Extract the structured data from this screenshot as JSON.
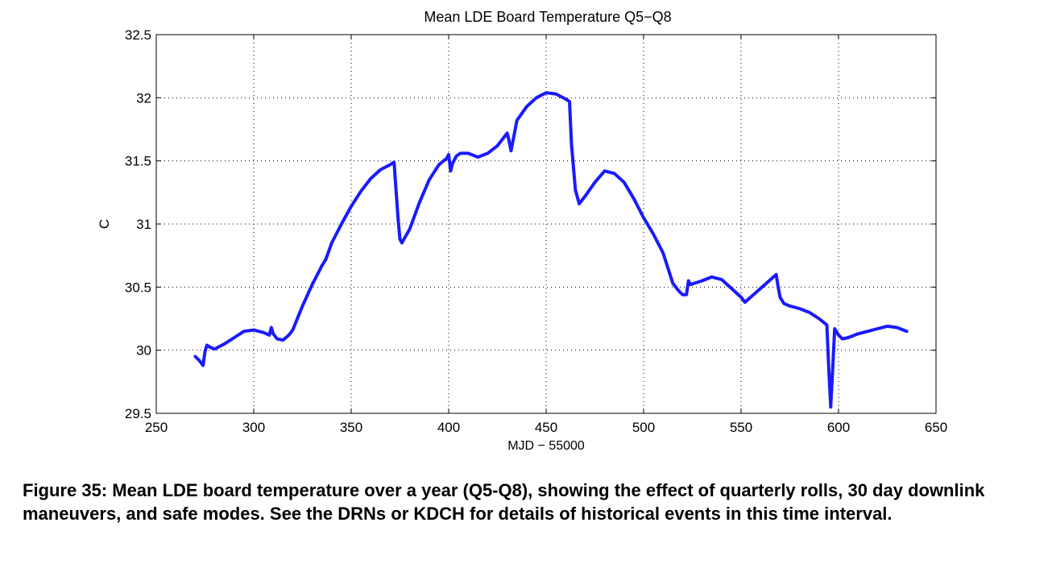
{
  "chart_data": {
    "type": "line",
    "title": "Mean LDE Board Temperature Q5−Q8",
    "xlabel": "MJD − 55000",
    "ylabel": "C",
    "xlim": [
      250,
      650
    ],
    "ylim": [
      29.5,
      32.5
    ],
    "xticks": [
      250,
      300,
      350,
      400,
      450,
      500,
      550,
      600,
      650
    ],
    "yticks": [
      29.5,
      30,
      30.5,
      31,
      31.5,
      32,
      32.5
    ],
    "grid": true,
    "line_color": "#1a1aff",
    "series": [
      {
        "x": [
          270,
          272,
          274,
          275,
          276,
          278,
          280,
          285,
          290,
          295,
          300,
          305,
          308,
          309,
          310,
          312,
          315,
          318,
          320,
          325,
          330,
          335,
          337,
          340,
          345,
          350,
          355,
          360,
          365,
          370,
          372,
          374,
          375,
          376,
          380,
          385,
          390,
          395,
          399,
          400,
          401,
          402,
          404,
          406,
          410,
          415,
          420,
          425,
          428,
          430,
          431,
          432,
          433,
          435,
          440,
          445,
          450,
          455,
          460,
          462,
          463,
          465,
          467,
          470,
          475,
          480,
          485,
          490,
          495,
          500,
          505,
          510,
          515,
          518,
          520,
          522,
          523,
          524,
          526,
          530,
          535,
          540,
          545,
          550,
          552,
          568,
          569,
          570,
          572,
          575,
          580,
          585,
          590,
          594,
          595,
          596,
          597,
          598,
          600,
          602,
          605,
          610,
          615,
          620,
          625,
          630,
          635
        ],
        "y": [
          29.95,
          29.92,
          29.88,
          29.99,
          30.04,
          30.02,
          30.01,
          30.05,
          30.1,
          30.15,
          30.16,
          30.14,
          30.12,
          30.18,
          30.13,
          30.09,
          30.08,
          30.12,
          30.16,
          30.35,
          30.52,
          30.67,
          30.72,
          30.85,
          31.0,
          31.14,
          31.26,
          31.36,
          31.43,
          31.47,
          31.49,
          31.05,
          30.88,
          30.85,
          30.96,
          31.17,
          31.35,
          31.47,
          31.52,
          31.55,
          31.42,
          31.48,
          31.54,
          31.56,
          31.56,
          31.53,
          31.56,
          31.62,
          31.68,
          31.72,
          31.66,
          31.58,
          31.66,
          31.82,
          31.93,
          32.0,
          32.04,
          32.03,
          31.99,
          31.97,
          31.63,
          31.27,
          31.16,
          31.22,
          31.33,
          31.42,
          31.4,
          31.33,
          31.2,
          31.05,
          30.92,
          30.77,
          30.53,
          30.47,
          30.44,
          30.44,
          30.55,
          30.52,
          30.53,
          30.55,
          30.58,
          30.56,
          30.49,
          30.42,
          30.38,
          30.6,
          30.5,
          30.42,
          30.37,
          30.35,
          30.33,
          30.3,
          30.25,
          30.2,
          29.85,
          29.55,
          29.85,
          30.17,
          30.12,
          30.09,
          30.1,
          30.13,
          30.15,
          30.17,
          30.19,
          30.18,
          30.15
        ]
      }
    ]
  },
  "caption": "Figure 35:  Mean LDE board temperature over a year (Q5-Q8), showing the effect of quarterly rolls, 30 day downlink maneuvers, and safe modes.  See the DRNs or KDCH for details of historical events in this time interval."
}
